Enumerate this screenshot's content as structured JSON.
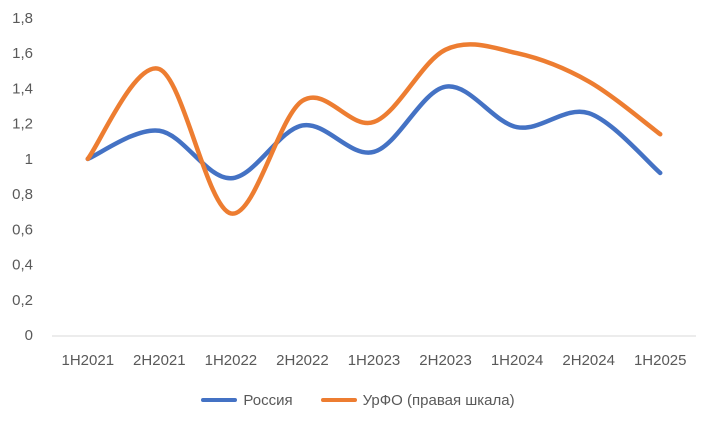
{
  "chart_data": {
    "type": "line",
    "categories": [
      "1H2021",
      "2H2021",
      "1H2022",
      "2H2022",
      "1H2023",
      "2H2023",
      "1H2024",
      "2H2024",
      "1H2025"
    ],
    "series": [
      {
        "name": "Россия",
        "color": "#4472C4",
        "values": [
          1.0,
          1.16,
          0.89,
          1.19,
          1.04,
          1.41,
          1.18,
          1.26,
          0.92
        ]
      },
      {
        "name": "УрФО (правая шкала)",
        "color": "#ED7D31",
        "values": [
          1.0,
          1.51,
          0.69,
          1.33,
          1.21,
          1.62,
          1.6,
          1.44,
          1.14
        ]
      }
    ],
    "y_ticks": [
      "0",
      "0,2",
      "0,4",
      "0,6",
      "0,8",
      "1",
      "1,2",
      "1,4",
      "1,6",
      "1,8"
    ],
    "ylim": [
      0,
      1.8
    ],
    "smooth": true,
    "grid": false,
    "legend_position": "bottom",
    "axis_line_color": "#D9D9D9",
    "tick_color": "#595959"
  }
}
